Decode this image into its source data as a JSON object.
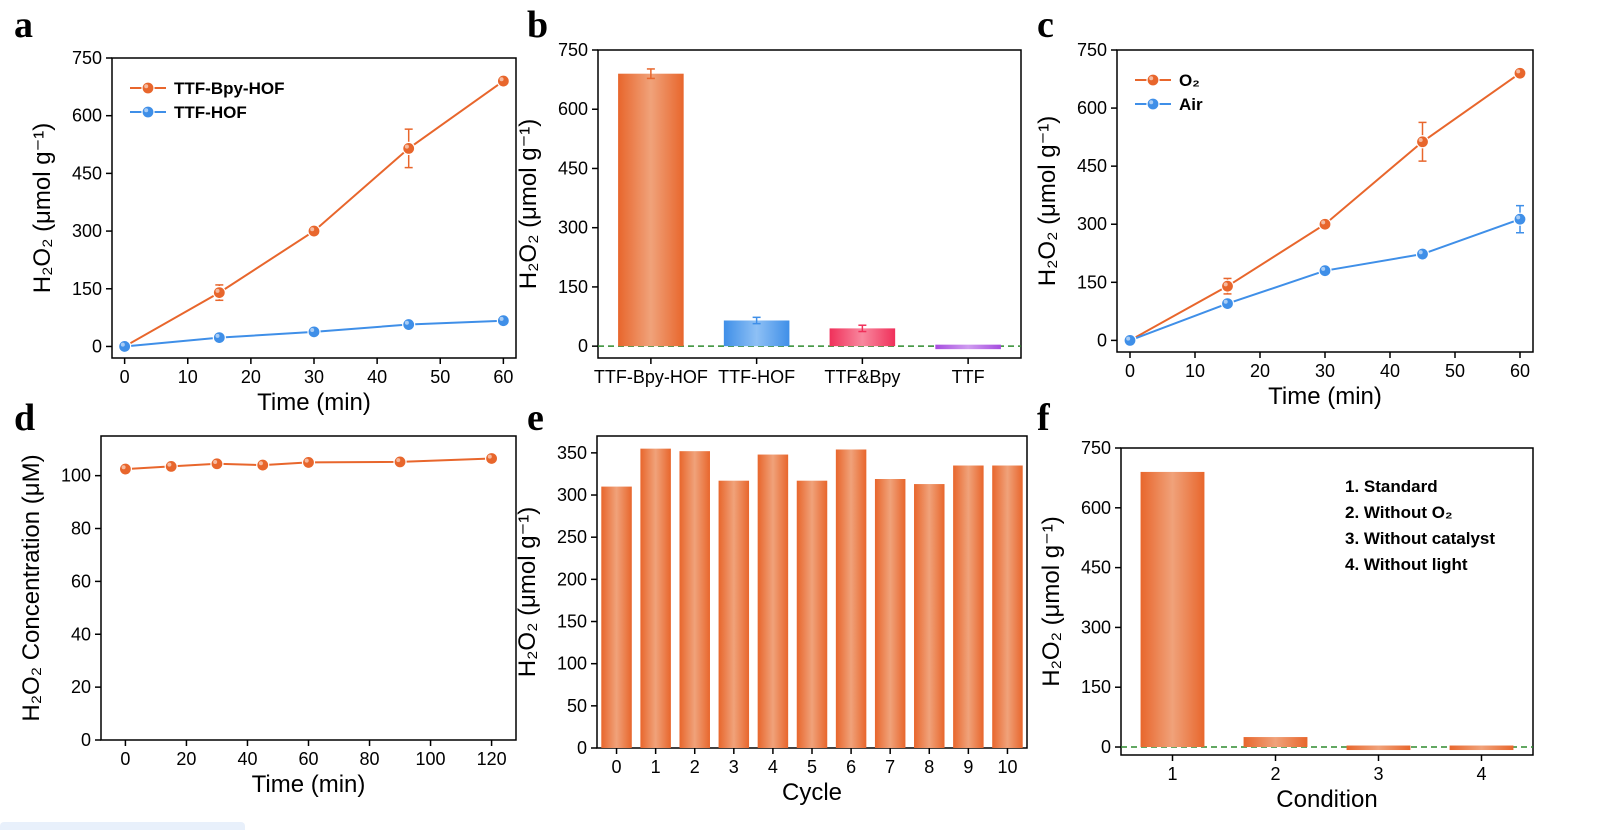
{
  "panel_letters": [
    "a",
    "b",
    "c",
    "d",
    "e",
    "f"
  ],
  "colors": {
    "orange": "#e8662c",
    "orange_light": "#f0a27a",
    "blue": "#3f8fe8",
    "red": "#f0305a",
    "purple": "#a64ddf",
    "dash": "#2e8b2e"
  },
  "chart_data": [
    {
      "id": "a",
      "type": "line",
      "xlabel": "Time (min)",
      "ylabel": "H₂O₂ (μmol g⁻¹)",
      "xlim": [
        -2,
        62
      ],
      "ylim": [
        -30,
        750
      ],
      "xticks": [
        0,
        10,
        20,
        30,
        40,
        50,
        60
      ],
      "yticks": [
        0,
        150,
        300,
        450,
        600,
        750
      ],
      "legend_position": "top-left",
      "series": [
        {
          "name": "TTF-Bpy-HOF",
          "color": "#e8662c",
          "x": [
            0,
            15,
            30,
            45,
            60
          ],
          "y": [
            0,
            140,
            300,
            515,
            690
          ],
          "err": [
            0,
            20,
            0,
            50,
            0
          ]
        },
        {
          "name": "TTF-HOF",
          "color": "#3f8fe8",
          "x": [
            0,
            15,
            30,
            45,
            60
          ],
          "y": [
            0,
            23,
            38,
            57,
            67
          ],
          "err": [
            0,
            0,
            0,
            0,
            0
          ]
        }
      ]
    },
    {
      "id": "b",
      "type": "bar",
      "ylabel": "H₂O₂ (μmol g⁻¹)",
      "ylim": [
        -30,
        750
      ],
      "yticks": [
        0,
        150,
        300,
        450,
        600,
        750
      ],
      "categories": [
        "TTF-Bpy-HOF",
        "TTF-HOF",
        "TTF&Bpy",
        "TTF"
      ],
      "values": [
        690,
        65,
        45,
        -2
      ],
      "errors": [
        12,
        8,
        8,
        0
      ],
      "bar_colors": [
        "#e8662c",
        "#3f8fe8",
        "#f0305a",
        "#a64ddf"
      ],
      "baseline": "dashed zero line"
    },
    {
      "id": "c",
      "type": "line",
      "xlabel": "Time (min)",
      "ylabel": "H₂O₂ (μmol g⁻¹)",
      "xlim": [
        -2,
        62
      ],
      "ylim": [
        -30,
        750
      ],
      "xticks": [
        0,
        10,
        20,
        30,
        40,
        50,
        60
      ],
      "yticks": [
        0,
        150,
        300,
        450,
        600,
        750
      ],
      "legend_position": "top-left",
      "series": [
        {
          "name": "O₂",
          "color": "#e8662c",
          "x": [
            0,
            15,
            30,
            45,
            60
          ],
          "y": [
            0,
            140,
            300,
            513,
            690
          ],
          "err": [
            0,
            20,
            0,
            50,
            0
          ]
        },
        {
          "name": "Air",
          "color": "#3f8fe8",
          "x": [
            0,
            15,
            30,
            45,
            60
          ],
          "y": [
            0,
            95,
            180,
            223,
            313
          ],
          "err": [
            0,
            0,
            0,
            0,
            35
          ]
        }
      ]
    },
    {
      "id": "d",
      "type": "line",
      "xlabel": "Time (min)",
      "ylabel": "H₂O₂ Concentration (μM)",
      "xlim": [
        -8,
        128
      ],
      "ylim": [
        0,
        115
      ],
      "xticks": [
        0,
        20,
        40,
        60,
        80,
        100,
        120
      ],
      "yticks": [
        0,
        20,
        40,
        60,
        80,
        100
      ],
      "series": [
        {
          "name": "",
          "color": "#e8662c",
          "x": [
            0,
            15,
            30,
            45,
            60,
            90,
            120
          ],
          "y": [
            102.5,
            103.5,
            104.5,
            104,
            105,
            105.2,
            106.5
          ]
        }
      ]
    },
    {
      "id": "e",
      "type": "bar",
      "xlabel": "Cycle",
      "ylabel": "H₂O₂ (μmol g⁻¹)",
      "ylim": [
        0,
        370
      ],
      "yticks": [
        0,
        50,
        100,
        150,
        200,
        250,
        300,
        350
      ],
      "categories": [
        "0",
        "1",
        "2",
        "3",
        "4",
        "5",
        "6",
        "7",
        "8",
        "9",
        "10"
      ],
      "values": [
        310,
        355,
        352,
        317,
        348,
        317,
        354,
        319,
        313,
        335,
        335
      ]
    },
    {
      "id": "f",
      "type": "bar",
      "xlabel": "Condition",
      "ylabel": "H₂O₂ (μmol g⁻¹)",
      "ylim": [
        -20,
        750
      ],
      "yticks": [
        0,
        150,
        300,
        450,
        600,
        750
      ],
      "categories": [
        "1",
        "2",
        "3",
        "4"
      ],
      "values": [
        690,
        25,
        -3,
        -3
      ],
      "legend_position": "top-right",
      "legend_items": [
        "1. Standard",
        "2. Without O₂",
        "3. Without catalyst",
        "4. Without light"
      ],
      "baseline": "dashed zero line"
    }
  ]
}
